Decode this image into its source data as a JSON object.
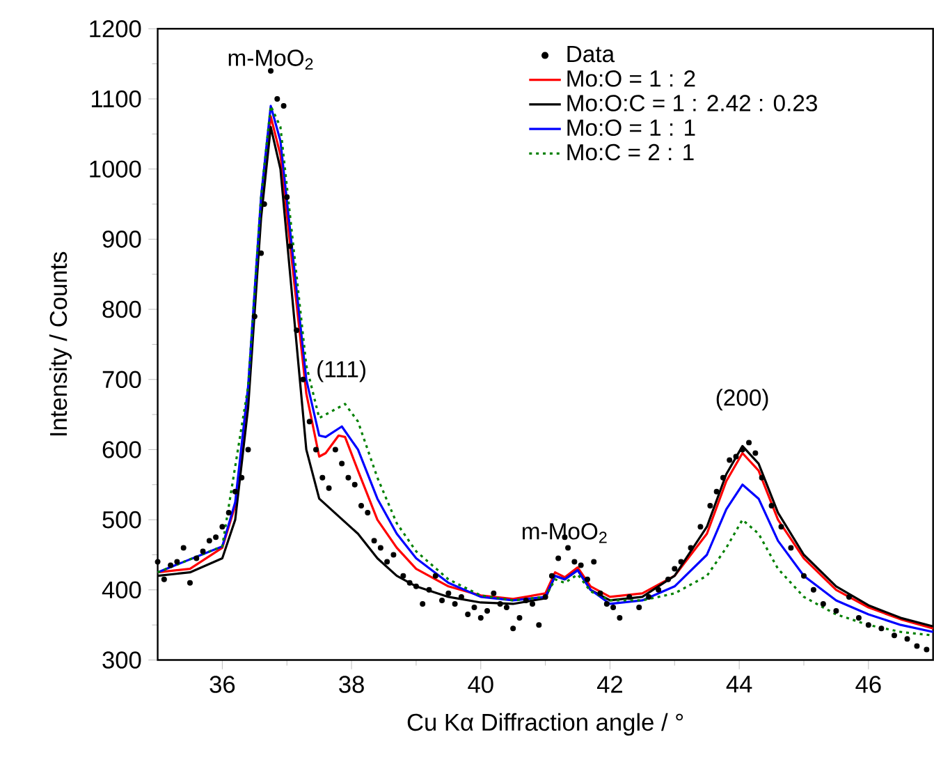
{
  "chart_data": {
    "type": "line",
    "xlabel": "Cu Kα Diffraction angle / °",
    "ylabel": "Intensity / Counts",
    "xlim": [
      35,
      47
    ],
    "ylim": [
      300,
      1200
    ],
    "xticks": [
      36,
      38,
      40,
      42,
      44,
      46
    ],
    "yticks": [
      300,
      400,
      500,
      600,
      700,
      800,
      900,
      1000,
      1100,
      1200
    ],
    "legend": "top right",
    "grid": false,
    "annotations": [
      "m-MoO$_{2}$",
      "(111)",
      "m-MoO$_{2}$",
      "(200)"
    ],
    "series": [
      {
        "name": "Data",
        "type": "scatter",
        "color": "#000000",
        "x": [
          35.0,
          35.1,
          35.2,
          35.3,
          35.4,
          35.5,
          35.6,
          35.7,
          35.8,
          35.9,
          36.0,
          36.1,
          36.2,
          36.3,
          36.4,
          36.5,
          36.6,
          36.65,
          36.75,
          36.85,
          36.95,
          37.0,
          37.05,
          37.15,
          37.25,
          37.35,
          37.45,
          37.55,
          37.65,
          37.75,
          37.85,
          37.95,
          38.05,
          38.15,
          38.25,
          38.35,
          38.45,
          38.55,
          38.65,
          38.8,
          38.9,
          39.0,
          39.1,
          39.2,
          39.3,
          39.4,
          39.5,
          39.6,
          39.7,
          39.8,
          39.9,
          40.0,
          40.1,
          40.2,
          40.3,
          40.4,
          40.5,
          40.6,
          40.7,
          40.8,
          40.9,
          41.0,
          41.1,
          41.2,
          41.3,
          41.35,
          41.45,
          41.55,
          41.65,
          41.75,
          41.85,
          41.95,
          42.05,
          42.15,
          42.3,
          42.45,
          42.6,
          42.75,
          42.9,
          43.0,
          43.1,
          43.25,
          43.4,
          43.55,
          43.65,
          43.75,
          43.85,
          43.95,
          44.05,
          44.15,
          44.25,
          44.35,
          44.5,
          44.65,
          44.8,
          45.0,
          45.15,
          45.3,
          45.5,
          45.7,
          45.85,
          46.0,
          46.2,
          46.4,
          46.6,
          46.75,
          46.9
        ],
        "values": [
          440,
          415,
          435,
          440,
          460,
          410,
          445,
          455,
          470,
          475,
          490,
          510,
          540,
          560,
          600,
          790,
          880,
          950,
          1140,
          1100,
          1090,
          960,
          890,
          770,
          700,
          640,
          600,
          560,
          545,
          600,
          580,
          560,
          550,
          520,
          510,
          470,
          460,
          440,
          450,
          420,
          410,
          405,
          380,
          400,
          420,
          385,
          395,
          380,
          390,
          365,
          375,
          360,
          370,
          395,
          380,
          375,
          345,
          360,
          385,
          380,
          350,
          390,
          420,
          445,
          475,
          460,
          440,
          435,
          415,
          440,
          395,
          380,
          375,
          360,
          390,
          375,
          390,
          400,
          415,
          430,
          440,
          460,
          490,
          520,
          540,
          560,
          585,
          590,
          600,
          610,
          595,
          560,
          520,
          490,
          460,
          420,
          400,
          380,
          370,
          390,
          360,
          350,
          345,
          335,
          330,
          320,
          315
        ]
      },
      {
        "name": "Mo:O = 1 : 2",
        "line_style": "solid",
        "color": "#ff0000",
        "x": [
          35,
          35.5,
          36,
          36.2,
          36.4,
          36.6,
          36.75,
          36.9,
          37.1,
          37.3,
          37.5,
          37.6,
          37.8,
          37.9,
          38.1,
          38.4,
          38.7,
          39,
          39.5,
          40,
          40.5,
          41,
          41.15,
          41.3,
          41.5,
          41.7,
          42,
          42.5,
          43,
          43.5,
          43.8,
          44.05,
          44.3,
          44.6,
          45,
          45.5,
          46,
          46.5,
          47
        ],
        "values": [
          425,
          430,
          460,
          520,
          680,
          950,
          1075,
          1020,
          850,
          680,
          590,
          595,
          620,
          618,
          570,
          500,
          460,
          430,
          405,
          392,
          387,
          395,
          425,
          418,
          432,
          405,
          390,
          395,
          420,
          480,
          555,
          595,
          570,
          500,
          445,
          400,
          375,
          358,
          345
        ]
      },
      {
        "name": "Mo:O:C = 1 : 2.42 : 0.23",
        "line_style": "solid",
        "color": "#000000",
        "x": [
          35,
          35.5,
          36,
          36.2,
          36.4,
          36.6,
          36.75,
          36.9,
          37.1,
          37.3,
          37.5,
          37.8,
          38.1,
          38.4,
          38.7,
          39,
          39.5,
          40,
          40.5,
          41,
          41.15,
          41.3,
          41.5,
          41.7,
          42,
          42.5,
          43,
          43.5,
          43.8,
          44.05,
          44.3,
          44.6,
          45,
          45.5,
          46,
          46.5,
          47
        ],
        "values": [
          420,
          425,
          445,
          500,
          660,
          930,
          1060,
          1000,
          800,
          600,
          530,
          505,
          480,
          445,
          420,
          405,
          390,
          382,
          380,
          388,
          420,
          415,
          428,
          400,
          385,
          390,
          420,
          490,
          565,
          605,
          580,
          510,
          450,
          405,
          378,
          360,
          348
        ]
      },
      {
        "name": "Mo:O = 1 : 1",
        "line_style": "solid",
        "color": "#0000ff",
        "x": [
          35,
          36,
          36.2,
          36.4,
          36.6,
          36.75,
          36.9,
          37.1,
          37.3,
          37.5,
          37.6,
          37.85,
          38.1,
          38.4,
          38.7,
          39,
          39.5,
          40,
          40.5,
          41,
          41.15,
          41.3,
          41.5,
          41.7,
          42,
          42.5,
          43,
          43.5,
          43.8,
          44.05,
          44.3,
          44.6,
          45,
          45.5,
          46,
          46.5,
          47
        ],
        "values": [
          425,
          462,
          525,
          690,
          960,
          1090,
          1040,
          870,
          700,
          620,
          618,
          633,
          600,
          530,
          480,
          445,
          410,
          390,
          385,
          390,
          420,
          415,
          428,
          400,
          380,
          385,
          405,
          450,
          515,
          550,
          530,
          470,
          420,
          385,
          365,
          350,
          340
        ]
      },
      {
        "name": "Mo:C = 2 : 1",
        "line_style": "dotted",
        "color": "#008000",
        "x": [
          35,
          36,
          36.4,
          36.6,
          36.75,
          36.9,
          37.1,
          37.3,
          37.5,
          37.7,
          37.9,
          38.1,
          38.4,
          38.7,
          39,
          39.5,
          40,
          40.5,
          41,
          41.15,
          41.3,
          41.5,
          41.7,
          42,
          42.5,
          43,
          43.5,
          43.8,
          44.05,
          44.3,
          44.6,
          45,
          45.5,
          46,
          46.5,
          47
        ],
        "values": [
          425,
          462,
          690,
          960,
          1090,
          1060,
          890,
          720,
          645,
          655,
          665,
          640,
          560,
          495,
          455,
          415,
          392,
          385,
          390,
          415,
          410,
          422,
          398,
          385,
          385,
          395,
          420,
          460,
          500,
          480,
          430,
          390,
          365,
          350,
          340,
          335
        ]
      }
    ]
  }
}
